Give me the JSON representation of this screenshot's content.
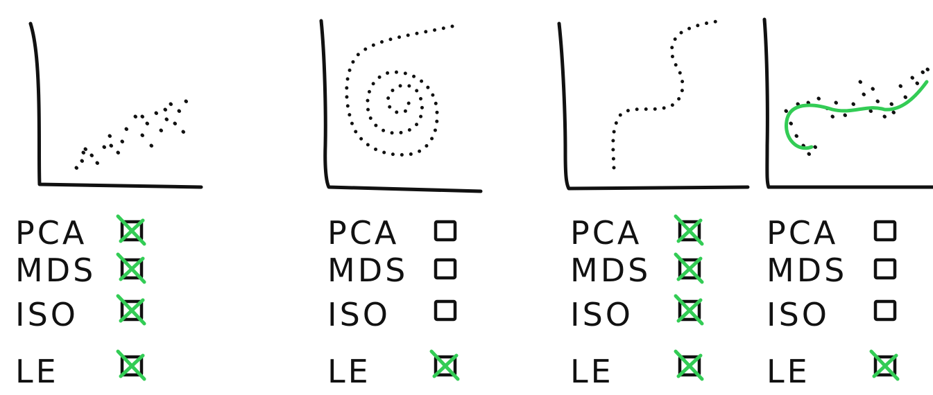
{
  "panels": [
    {
      "shape": "linear",
      "methods": [
        {
          "label": "PCA",
          "checked": true
        },
        {
          "label": "MDS",
          "checked": true
        },
        {
          "label": "ISO",
          "checked": true
        },
        {
          "label": "LE",
          "checked": true
        }
      ]
    },
    {
      "shape": "spiral",
      "methods": [
        {
          "label": "PCA",
          "checked": false
        },
        {
          "label": "MDS",
          "checked": false
        },
        {
          "label": "ISO",
          "checked": false
        },
        {
          "label": "LE",
          "checked": true
        }
      ]
    },
    {
      "shape": "s-curve",
      "methods": [
        {
          "label": "PCA",
          "checked": true
        },
        {
          "label": "MDS",
          "checked": true
        },
        {
          "label": "ISO",
          "checked": true
        },
        {
          "label": "LE",
          "checked": true
        }
      ]
    },
    {
      "shape": "noisy-curve-with-fit",
      "methods": [
        {
          "label": "PCA",
          "checked": false
        },
        {
          "label": "MDS",
          "checked": false
        },
        {
          "label": "ISO",
          "checked": false
        },
        {
          "label": "LE",
          "checked": true
        }
      ]
    }
  ],
  "colors": {
    "ink": "#111111",
    "check": "#33cc55"
  }
}
